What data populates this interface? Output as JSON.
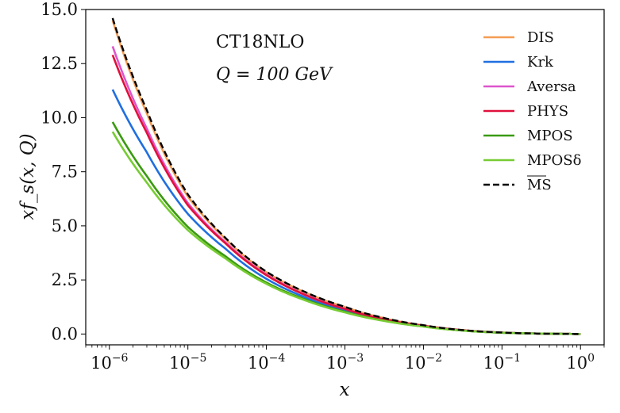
{
  "chart_data": {
    "type": "line",
    "title": "",
    "annotations": [
      "CT18NLO",
      "Q = 100 GeV"
    ],
    "xlabel": "x",
    "ylabel": "xf_s(x, Q)",
    "xscale": "log",
    "xlim": [
      5e-07,
      2
    ],
    "ylim": [
      -0.5,
      15.0
    ],
    "x_tick_labels": [
      "10^-6",
      "10^-5",
      "10^-4",
      "10^-3",
      "10^-2",
      "10^-1",
      "10^0"
    ],
    "x_tick_values": [
      1e-06,
      1e-05,
      0.0001,
      0.001,
      0.01,
      0.1,
      1
    ],
    "y_tick_values": [
      0.0,
      2.5,
      5.0,
      7.5,
      10.0,
      12.5,
      15.0
    ],
    "y_tick_labels": [
      "0.0",
      "2.5",
      "5.0",
      "7.5",
      "10.0",
      "12.5",
      "15.0"
    ],
    "legend_position": "top-right",
    "x": [
      1.1e-06,
      3e-06,
      1e-05,
      3e-05,
      0.0001,
      0.0003,
      0.001,
      0.003,
      0.01,
      0.03,
      0.1,
      0.3,
      1.0
    ],
    "series": [
      {
        "name": "DIS",
        "color": "#f59d55",
        "dash": false,
        "values": [
          14.5,
          10.2,
          6.35,
          4.4,
          2.85,
          1.95,
          1.25,
          0.75,
          0.4,
          0.19,
          0.07,
          0.02,
          0.0
        ]
      },
      {
        "name": "Krk",
        "color": "#1f6fe0",
        "dash": false,
        "values": [
          11.3,
          8.4,
          5.55,
          3.95,
          2.55,
          1.72,
          1.08,
          0.65,
          0.36,
          0.17,
          0.06,
          0.02,
          0.0
        ]
      },
      {
        "name": "Aversa",
        "color": "#dd55cc",
        "dash": false,
        "values": [
          13.3,
          9.5,
          6.05,
          4.25,
          2.75,
          1.85,
          1.17,
          0.7,
          0.38,
          0.18,
          0.065,
          0.02,
          0.0
        ]
      },
      {
        "name": "PHYS",
        "color": "#e0103c",
        "dash": false,
        "values": [
          12.9,
          9.3,
          5.95,
          4.2,
          2.72,
          1.83,
          1.16,
          0.7,
          0.38,
          0.18,
          0.065,
          0.02,
          0.0
        ]
      },
      {
        "name": "MPOS",
        "color": "#3a9a10",
        "dash": false,
        "values": [
          9.8,
          7.3,
          4.95,
          3.6,
          2.38,
          1.62,
          1.03,
          0.63,
          0.35,
          0.17,
          0.06,
          0.02,
          0.0
        ]
      },
      {
        "name": "MPOSδ",
        "color": "#77cc33",
        "dash": false,
        "values": [
          9.35,
          7.0,
          4.8,
          3.5,
          2.32,
          1.58,
          1.0,
          0.62,
          0.345,
          0.165,
          0.06,
          0.02,
          0.0
        ]
      },
      {
        "name": "MS",
        "color": "#000000",
        "dash": true,
        "overline": true,
        "values": [
          14.6,
          10.35,
          6.45,
          4.45,
          2.88,
          1.97,
          1.26,
          0.76,
          0.41,
          0.19,
          0.07,
          0.02,
          0.0
        ]
      }
    ]
  }
}
